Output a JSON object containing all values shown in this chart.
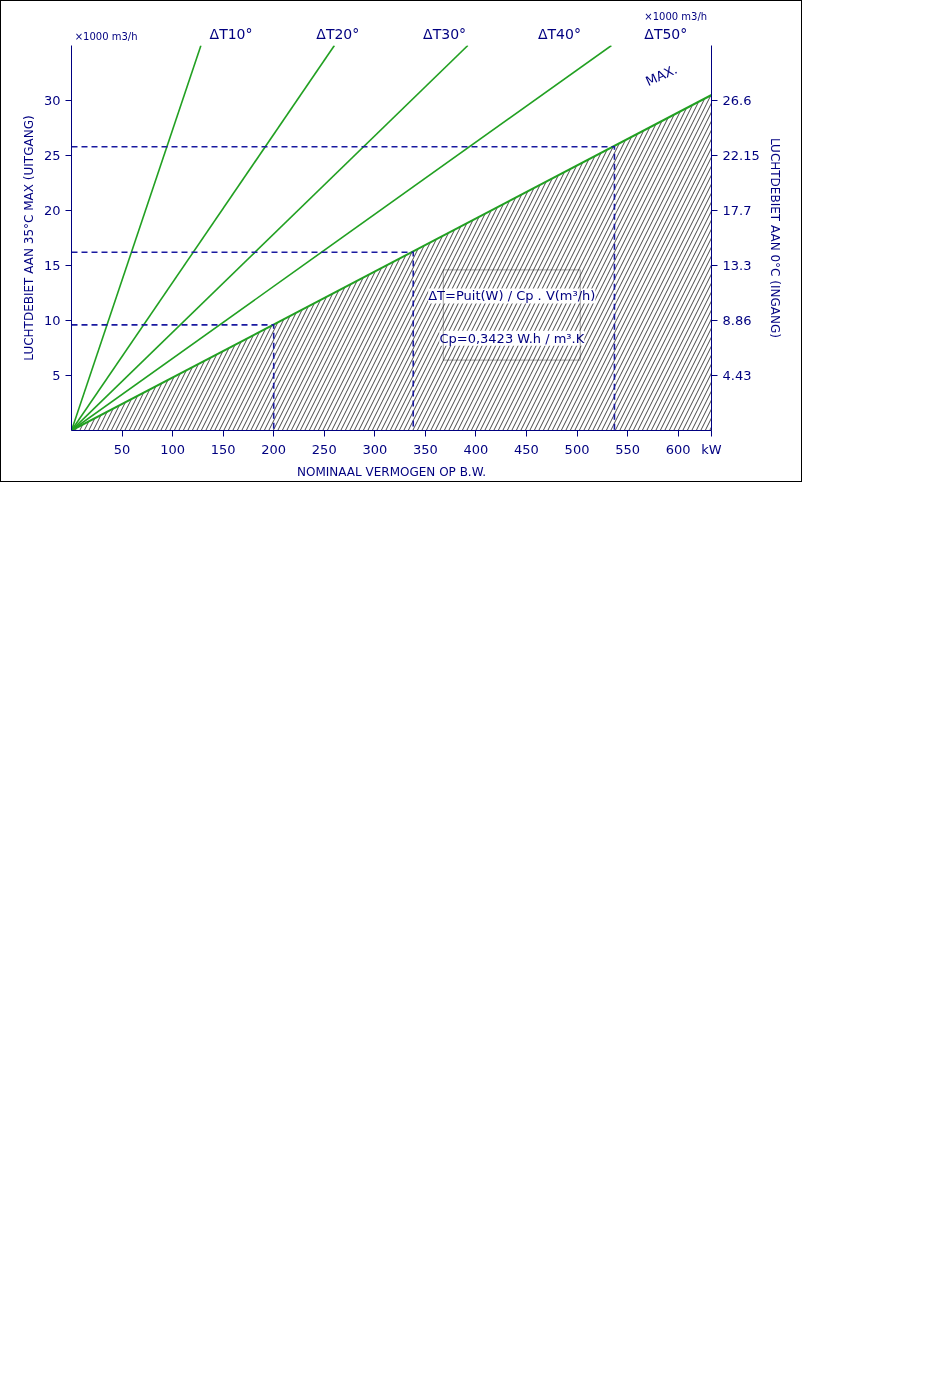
{
  "chart_data": {
    "type": "line",
    "xlabel": "NOMINAAL VERMOGEN OP B.W.",
    "ylabel": "LUCHTDEBIET AAN 35°C MAX (UITGANG)",
    "y2label": "LUCHTDEBIET AAN 0°C (INGANG)",
    "xlim": [
      0,
      633
    ],
    "xticks": [
      50,
      100,
      150,
      200,
      250,
      300,
      350,
      400,
      450,
      500,
      550,
      600,
      {
        "value": 633,
        "label": "kW"
      }
    ],
    "ylim": [
      0,
      35
    ],
    "yticks": [
      5,
      10,
      15,
      20,
      25,
      30
    ],
    "y2lim": [
      0,
      31.02
    ],
    "y2ticks": [
      4.43,
      8.86,
      13.3,
      17.7,
      22.15,
      26.6
    ],
    "grid": false,
    "marker": "none",
    "series": [
      {
        "name": "ΔT10°",
        "color": "#22a022",
        "x": [
          0,
          128
        ],
        "values": [
          0,
          35
        ]
      },
      {
        "name": "ΔT20°",
        "color": "#22a022",
        "x": [
          0,
          260
        ],
        "values": [
          0,
          35
        ]
      },
      {
        "name": "ΔT30°",
        "color": "#22a022",
        "x": [
          0,
          392
        ],
        "values": [
          0,
          35
        ]
      },
      {
        "name": "ΔT40°",
        "color": "#22a022",
        "x": [
          0,
          534
        ],
        "values": [
          0,
          35
        ]
      },
      {
        "name": "MAX.",
        "type": "area",
        "color": "#22a022",
        "x": [
          0,
          633
        ],
        "values": [
          0,
          30.5
        ]
      },
      {
        "color": "#1a1aa0",
        "line_style": "dashed",
        "x": [
          0,
          200,
          200
        ],
        "values": [
          9.6,
          9.6,
          0
        ]
      },
      {
        "color": "#1a1aa0",
        "line_style": "dashed",
        "x": [
          0,
          338,
          338
        ],
        "values": [
          16.2,
          16.2,
          0
        ]
      },
      {
        "color": "#1a1aa0",
        "line_style": "dashed",
        "x": [
          0,
          537,
          537
        ],
        "values": [
          25.8,
          25.8,
          0
        ]
      }
    ],
    "annotations": [
      "×1000 m3/h",
      "×1000 m3/h",
      "ΔT50°",
      "ΔT=Puit(W) / Cp . V(m³/h)",
      "Cp=0,3423 W.h / m³.K"
    ]
  }
}
